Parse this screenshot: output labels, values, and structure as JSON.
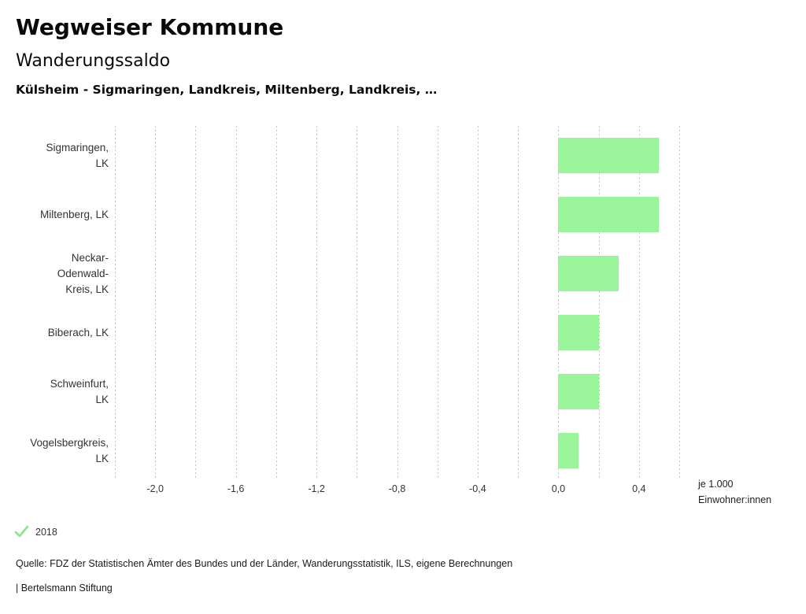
{
  "header": {
    "title": "Wegweiser Kommune",
    "subtitle": "Wanderungssaldo",
    "selection": "Külsheim - Sigmaringen, Landkreis, Miltenberg, Landkreis, …"
  },
  "legend": {
    "year": "2018"
  },
  "footer": {
    "source": "Quelle: FDZ der Statistischen Ämter des Bundes und der Länder, Wanderungsstatistik, ILS, eigene Berechnungen",
    "attribution": "| Bertelsmann Stiftung"
  },
  "colors": {
    "bar": "#9af59a",
    "legend_check": "#86e886",
    "grid": "#c4c4c4"
  },
  "chart_data": {
    "type": "bar",
    "orientation": "horizontal",
    "title": "Wanderungssaldo",
    "series_name": "2018",
    "categories": [
      "Sigmaringen, LK",
      "Miltenberg, LK",
      "Neckar-Odenwald-Kreis, LK",
      "Biberach, LK",
      "Schweinfurt, LK",
      "Vogelsbergkreis, LK"
    ],
    "category_label_lines": [
      [
        "Sigmaringen,",
        "LK"
      ],
      [
        "Miltenberg, LK"
      ],
      [
        "Neckar-",
        "Odenwald-",
        "Kreis, LK"
      ],
      [
        "Biberach, LK"
      ],
      [
        "Schweinfurt,",
        "LK"
      ],
      [
        "Vogelsbergkreis,",
        "LK"
      ]
    ],
    "values": [
      0.5,
      0.5,
      0.3,
      0.2,
      0.2,
      0.1
    ],
    "xlim": [
      -2.2,
      0.6
    ],
    "tick_step": 0.2,
    "labeled_tick_values": [
      -2.0,
      -1.6,
      -1.2,
      -0.8,
      -0.4,
      0.0,
      0.4
    ],
    "labeled_tick_labels": [
      "-2,0",
      "-1,6",
      "-1,2",
      "-0,8",
      "-0,4",
      "0,0",
      "0,4"
    ],
    "xlabel_lines": [
      "je 1.000",
      "Einwohner:innen"
    ],
    "xlabel": "je 1.000 Einwohner:innen",
    "grid": "vertical dotted, every 0.2",
    "legend_position": "bottom-left"
  }
}
